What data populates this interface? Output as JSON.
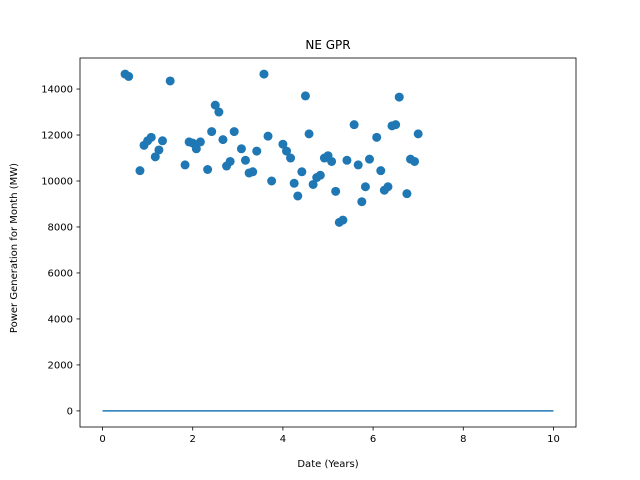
{
  "chart_data": {
    "type": "scatter",
    "title": "NE GPR",
    "xlabel": "Date (Years)",
    "ylabel": "Power Generation for Month (MW)",
    "xlim": [
      -0.5,
      10.5
    ],
    "ylim": [
      -700,
      15350
    ],
    "xticks": [
      0,
      2,
      4,
      6,
      8,
      10
    ],
    "yticks": [
      0,
      2000,
      4000,
      6000,
      8000,
      10000,
      12000,
      14000
    ],
    "grid": false,
    "colors": {
      "series": "#1f77b4",
      "axes": "#000000"
    },
    "series": [
      {
        "type": "scatter",
        "x": [
          0.5,
          0.58,
          0.83,
          0.92,
          1.0,
          1.08,
          1.17,
          1.25,
          1.33,
          1.5,
          1.83,
          1.92,
          2.0,
          2.08,
          2.17,
          2.33,
          2.42,
          2.5,
          2.58,
          2.67,
          2.75,
          2.83,
          2.92,
          3.08,
          3.17,
          3.25,
          3.33,
          3.42,
          3.58,
          3.67,
          3.75,
          4.0,
          4.08,
          4.17,
          4.25,
          4.33,
          4.42,
          4.5,
          4.58,
          4.67,
          4.75,
          4.83,
          4.92,
          5.0,
          5.08,
          5.17,
          5.25,
          5.33,
          5.42,
          5.58,
          5.67,
          5.75,
          5.83,
          5.92,
          6.08,
          6.17,
          6.25,
          6.33,
          6.42,
          6.5,
          6.58,
          6.75,
          6.83,
          6.92,
          7.0
        ],
        "y": [
          14650,
          14550,
          10450,
          11550,
          11750,
          11900,
          11050,
          11350,
          11750,
          14350,
          10700,
          11700,
          11650,
          11400,
          11700,
          10500,
          12150,
          13300,
          13000,
          11800,
          10650,
          10850,
          12150,
          11400,
          10900,
          10350,
          10400,
          11300,
          14650,
          11950,
          10000,
          11600,
          11300,
          11000,
          9900,
          9350,
          10400,
          13700,
          12050,
          9850,
          10150,
          10250,
          11000,
          11100,
          10850,
          9550,
          8200,
          8300,
          10900,
          12450,
          10700,
          9100,
          9750,
          10950,
          11900,
          10450,
          9600,
          9750,
          12400,
          12450,
          13650,
          9450,
          10950,
          10850,
          12050
        ]
      },
      {
        "type": "line",
        "x": [
          0,
          10
        ],
        "y": [
          0,
          0
        ]
      }
    ]
  }
}
